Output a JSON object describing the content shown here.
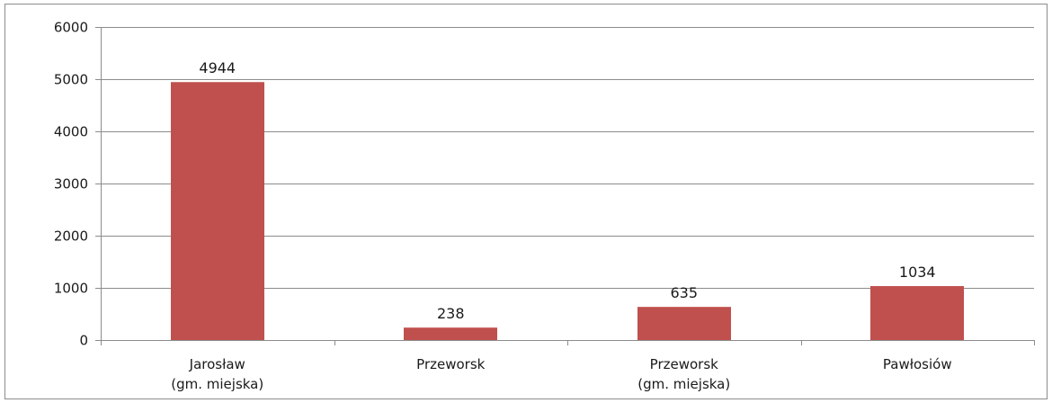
{
  "chart_data": {
    "type": "bar",
    "categories": [
      [
        "Jarosław",
        "(gm. miejska)"
      ],
      [
        "Przeworsk"
      ],
      [
        "Przeworsk",
        "(gm. miejska)"
      ],
      [
        "Pawłosiów"
      ]
    ],
    "values": [
      4944,
      238,
      635,
      1034
    ],
    "data_labels": [
      "4944",
      "238",
      "635",
      "1034"
    ],
    "ylim": [
      0,
      6000
    ],
    "yticks": [
      0,
      1000,
      2000,
      3000,
      4000,
      5000,
      6000
    ],
    "grid": true,
    "legend": false,
    "title": "",
    "xlabel": "",
    "ylabel": "",
    "colors": {
      "bar": "#c0504d",
      "grid": "#8c8c8c",
      "axis": "#8c8c8c"
    }
  }
}
